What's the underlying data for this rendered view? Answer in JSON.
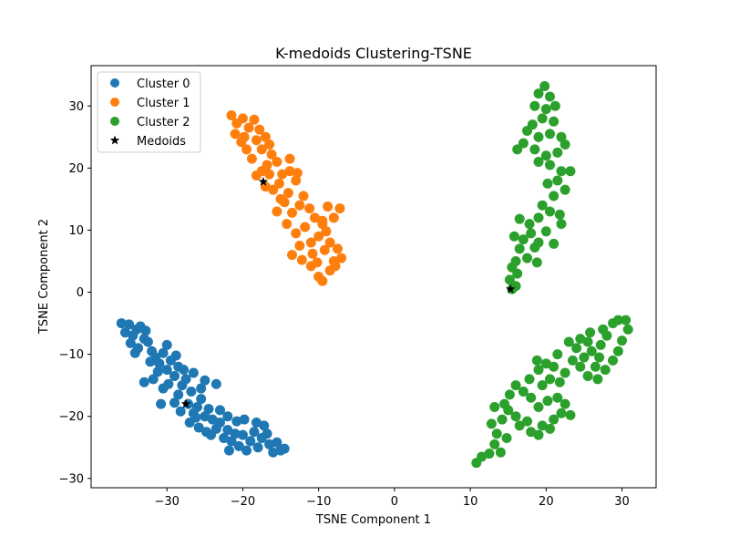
{
  "chart_data": {
    "type": "scatter",
    "title": "K-medoids Clustering-TSNE",
    "xlabel": "TSNE Component 1",
    "ylabel": "TSNE Component 2",
    "xlim": [
      -40,
      34.5
    ],
    "ylim": [
      -31.5,
      36.5
    ],
    "xticks": [
      -30,
      -20,
      -10,
      0,
      10,
      20,
      30
    ],
    "yticks": [
      -30,
      -20,
      -10,
      0,
      10,
      20,
      30
    ],
    "grid": false,
    "legend_position": "top-left",
    "series": [
      {
        "name": "Cluster 0",
        "color": "#1f77b4",
        "marker": "circle",
        "points": [
          [
            -36,
            -5
          ],
          [
            -35.5,
            -6.5
          ],
          [
            -35,
            -5.2
          ],
          [
            -34.5,
            -7
          ],
          [
            -34,
            -6
          ],
          [
            -33.5,
            -5.5
          ],
          [
            -33,
            -7.5
          ],
          [
            -34.8,
            -8.2
          ],
          [
            -33.8,
            -9
          ],
          [
            -32.5,
            -8
          ],
          [
            -32,
            -9.5
          ],
          [
            -31.5,
            -10.5
          ],
          [
            -30.5,
            -9.8
          ],
          [
            -31,
            -11.5
          ],
          [
            -30,
            -12.5
          ],
          [
            -29.5,
            -11
          ],
          [
            -29,
            -13.5
          ],
          [
            -28.5,
            -12
          ],
          [
            -31.8,
            -14
          ],
          [
            -30.5,
            -15.5
          ],
          [
            -29.8,
            -14.8
          ],
          [
            -28.5,
            -16.5
          ],
          [
            -29,
            -17.8
          ],
          [
            -28,
            -15
          ],
          [
            -27.5,
            -14
          ],
          [
            -26.8,
            -16
          ],
          [
            -27.2,
            -18
          ],
          [
            -26,
            -18.5
          ],
          [
            -25.5,
            -17.2
          ],
          [
            -26.5,
            -19.5
          ],
          [
            -27,
            -21
          ],
          [
            -25.8,
            -21.8
          ],
          [
            -25,
            -20
          ],
          [
            -24.5,
            -18.8
          ],
          [
            -24,
            -20.5
          ],
          [
            -23.5,
            -22
          ],
          [
            -24.2,
            -23
          ],
          [
            -23,
            -21
          ],
          [
            -22.5,
            -23.5
          ],
          [
            -22,
            -22.2
          ],
          [
            -21.5,
            -24
          ],
          [
            -21,
            -22.8
          ],
          [
            -20.5,
            -24.8
          ],
          [
            -20,
            -23
          ],
          [
            -19.5,
            -25.5
          ],
          [
            -19,
            -24
          ],
          [
            -20.8,
            -20.8
          ],
          [
            -19.8,
            -20.5
          ],
          [
            -18.5,
            -22.5
          ],
          [
            -18,
            -25
          ],
          [
            -17.5,
            -23.5
          ],
          [
            -16.5,
            -24.5
          ],
          [
            -16,
            -25.8
          ],
          [
            -15.5,
            -24.2
          ],
          [
            -15,
            -25.5
          ],
          [
            -14.5,
            -25.2
          ],
          [
            -16.8,
            -22.8
          ],
          [
            -17.2,
            -21.5
          ],
          [
            -23.5,
            -14.8
          ],
          [
            -25.5,
            -15.5
          ],
          [
            -30.8,
            -18
          ],
          [
            -33,
            -14.5
          ],
          [
            -30,
            -8.5
          ],
          [
            -32.8,
            -6.2
          ],
          [
            -28.8,
            -10.2
          ],
          [
            -27.8,
            -12.5
          ],
          [
            -26.5,
            -13
          ],
          [
            -25,
            -14.2
          ],
          [
            -22,
            -20
          ],
          [
            -23,
            -19
          ],
          [
            -18.2,
            -21
          ],
          [
            -21.8,
            -25.5
          ],
          [
            -24.8,
            -22.5
          ],
          [
            -26.2,
            -20.2
          ],
          [
            -31.2,
            -12.8
          ],
          [
            -34.2,
            -9.8
          ],
          [
            -32.2,
            -11.2
          ],
          [
            -28.2,
            -19.2
          ]
        ]
      },
      {
        "name": "Cluster 1",
        "color": "#ff7f0e",
        "marker": "circle",
        "points": [
          [
            -21.5,
            28.5
          ],
          [
            -20.8,
            27.2
          ],
          [
            -20,
            28
          ],
          [
            -19.2,
            26.5
          ],
          [
            -21,
            25.5
          ],
          [
            -19.8,
            25
          ],
          [
            -18.5,
            27.8
          ],
          [
            -17.8,
            26.2
          ],
          [
            -18.2,
            24.5
          ],
          [
            -17,
            25
          ],
          [
            -16.5,
            23.8
          ],
          [
            -17.5,
            23
          ],
          [
            -16.2,
            22.2
          ],
          [
            -15.5,
            21
          ],
          [
            -16.8,
            20.5
          ],
          [
            -17.5,
            19.5
          ],
          [
            -18.2,
            18.8
          ],
          [
            -17,
            17
          ],
          [
            -16,
            16.5
          ],
          [
            -15.2,
            17.5
          ],
          [
            -14.8,
            19
          ],
          [
            -13.8,
            19.5
          ],
          [
            -13,
            18
          ],
          [
            -14,
            16
          ],
          [
            -14.5,
            14.5
          ],
          [
            -15.5,
            13
          ],
          [
            -13.5,
            12.8
          ],
          [
            -12.5,
            14
          ],
          [
            -12,
            15.5
          ],
          [
            -11.2,
            13.5
          ],
          [
            -10.5,
            12
          ],
          [
            -9.5,
            11
          ],
          [
            -10,
            9
          ],
          [
            -11,
            8
          ],
          [
            -12.5,
            7.5
          ],
          [
            -13.5,
            6
          ],
          [
            -12.2,
            5.2
          ],
          [
            -11,
            4.2
          ],
          [
            -10,
            2.5
          ],
          [
            -9.5,
            1.8
          ],
          [
            -8.5,
            3.5
          ],
          [
            -8,
            5
          ],
          [
            -7,
            5.5
          ],
          [
            -7.5,
            7
          ],
          [
            -8.5,
            8
          ],
          [
            -9,
            9.8
          ],
          [
            -8,
            12
          ],
          [
            -7.2,
            13.5
          ],
          [
            -8.8,
            13.8
          ],
          [
            -9.5,
            11.5
          ],
          [
            -11.8,
            10.5
          ],
          [
            -13,
            9.5
          ],
          [
            -14.2,
            11
          ],
          [
            -15,
            15
          ],
          [
            -16.5,
            19
          ],
          [
            -18.8,
            21.5
          ],
          [
            -19.5,
            23
          ],
          [
            -20.2,
            24.2
          ],
          [
            -13.8,
            21.5
          ],
          [
            -12.8,
            19.2
          ],
          [
            -10.8,
            6.2
          ],
          [
            -9.2,
            6.8
          ],
          [
            -7.8,
            4.2
          ],
          [
            -10.2,
            4.8
          ]
        ]
      },
      {
        "name": "Cluster 2",
        "color": "#2ca02c",
        "marker": "circle",
        "points": [
          [
            19.8,
            33.2
          ],
          [
            19,
            32
          ],
          [
            20.5,
            31.5
          ],
          [
            18.5,
            30
          ],
          [
            20,
            29.5
          ],
          [
            21.2,
            30
          ],
          [
            19.5,
            28
          ],
          [
            21,
            27.5
          ],
          [
            18.2,
            27
          ],
          [
            17.5,
            26
          ],
          [
            19,
            25
          ],
          [
            20.5,
            25.5
          ],
          [
            22,
            25
          ],
          [
            22.5,
            23.8
          ],
          [
            21.5,
            22.5
          ],
          [
            20,
            22
          ],
          [
            18.5,
            23
          ],
          [
            17,
            24
          ],
          [
            16.2,
            23
          ],
          [
            19,
            21
          ],
          [
            20.5,
            20.5
          ],
          [
            22,
            19.5
          ],
          [
            23.2,
            19.5
          ],
          [
            21.5,
            18
          ],
          [
            20.2,
            17.5
          ],
          [
            22.5,
            16.5
          ],
          [
            21,
            15.5
          ],
          [
            19.5,
            14
          ],
          [
            20.5,
            13
          ],
          [
            21.8,
            12.5
          ],
          [
            19,
            12
          ],
          [
            17.8,
            11
          ],
          [
            16.5,
            11.8
          ],
          [
            18,
            9.5
          ],
          [
            17,
            8.5
          ],
          [
            15.8,
            9
          ],
          [
            16.5,
            7
          ],
          [
            18.5,
            7.2
          ],
          [
            17.5,
            5.5
          ],
          [
            16,
            5
          ],
          [
            15.5,
            4
          ],
          [
            16.2,
            3
          ],
          [
            15.2,
            2
          ],
          [
            16,
            1
          ],
          [
            15.5,
            0.5
          ],
          [
            19,
            8
          ],
          [
            20,
            9.8
          ],
          [
            18.8,
            4.8
          ],
          [
            22,
            11
          ],
          [
            21,
            7.8
          ],
          [
            10.8,
            -27.5
          ],
          [
            11.5,
            -26.5
          ],
          [
            12.5,
            -26
          ],
          [
            13.2,
            -24.5
          ],
          [
            14,
            -25.8
          ],
          [
            14.8,
            -23.5
          ],
          [
            13.5,
            -22.8
          ],
          [
            12.8,
            -21.2
          ],
          [
            14.2,
            -20.5
          ],
          [
            15,
            -19
          ],
          [
            16,
            -20
          ],
          [
            16.5,
            -21.5
          ],
          [
            17.5,
            -20.8
          ],
          [
            18,
            -22.5
          ],
          [
            19,
            -23
          ],
          [
            19.5,
            -21.5
          ],
          [
            20.5,
            -22
          ],
          [
            21,
            -20.5
          ],
          [
            22,
            -19.5
          ],
          [
            23.2,
            -19.8
          ],
          [
            22.5,
            -18
          ],
          [
            21.5,
            -17
          ],
          [
            20.2,
            -17.5
          ],
          [
            19,
            -18.5
          ],
          [
            18,
            -17
          ],
          [
            17,
            -16
          ],
          [
            16,
            -15
          ],
          [
            15.2,
            -16.5
          ],
          [
            14.5,
            -18
          ],
          [
            19.5,
            -15
          ],
          [
            20.5,
            -14
          ],
          [
            21.8,
            -14.5
          ],
          [
            22.5,
            -13
          ],
          [
            21,
            -12
          ],
          [
            20,
            -11.5
          ],
          [
            19,
            -12.5
          ],
          [
            23.5,
            -11
          ],
          [
            24.5,
            -12
          ],
          [
            25.5,
            -13.5
          ],
          [
            26.5,
            -12
          ],
          [
            27,
            -10.5
          ],
          [
            26,
            -9.5
          ],
          [
            25,
            -10.5
          ],
          [
            24,
            -9
          ],
          [
            23,
            -8
          ],
          [
            24.5,
            -7.5
          ],
          [
            25.5,
            -8
          ],
          [
            27.2,
            -8.5
          ],
          [
            28,
            -7
          ],
          [
            27.5,
            -6
          ],
          [
            28.8,
            -5
          ],
          [
            29.5,
            -4.5
          ],
          [
            30.5,
            -4.5
          ],
          [
            30.8,
            -6
          ],
          [
            30,
            -7.8
          ],
          [
            29.5,
            -9.5
          ],
          [
            28.8,
            -11
          ],
          [
            27.8,
            -12.5
          ],
          [
            26.8,
            -14
          ],
          [
            18.8,
            -11
          ],
          [
            21.5,
            -10
          ],
          [
            25.8,
            -6.5
          ],
          [
            13.2,
            -18.5
          ],
          [
            17.8,
            -14
          ]
        ]
      }
    ],
    "medoids": {
      "name": "Medoids",
      "color": "#000000",
      "marker": "star",
      "points": [
        [
          -27.5,
          -18
        ],
        [
          -17.3,
          17.8
        ],
        [
          15.3,
          0.5
        ]
      ]
    }
  }
}
